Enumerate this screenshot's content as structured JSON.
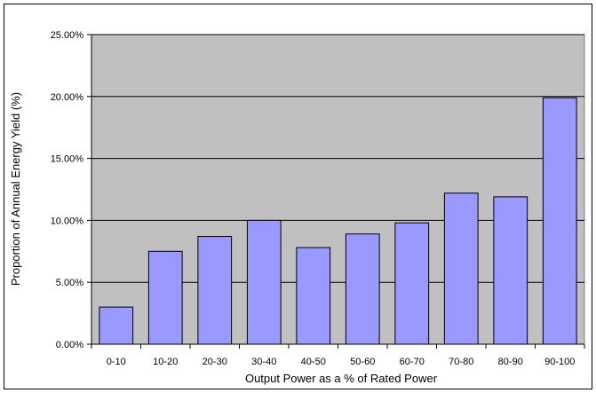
{
  "chart_data": {
    "type": "bar",
    "title": "",
    "xlabel": "Output Power as a % of Rated Power",
    "ylabel": "Proportion of Annual Energy Yield (%)",
    "categories": [
      "0-10",
      "10-20",
      "20-30",
      "30-40",
      "40-50",
      "50-60",
      "60-70",
      "70-80",
      "80-90",
      "90-100"
    ],
    "values": [
      3.0,
      7.5,
      8.7,
      10.0,
      7.8,
      8.9,
      9.8,
      12.2,
      11.9,
      19.9
    ],
    "value_unit": "%",
    "ylim": [
      0,
      25
    ],
    "yticks": [
      "0.00%",
      "5.00%",
      "10.00%",
      "15.00%",
      "20.00%",
      "25.00%"
    ],
    "grid": true,
    "legend": "none",
    "colors": {
      "plot_background": "#c0c0c0",
      "bar_fill": "#9999ff",
      "bar_stroke": "#000000",
      "gridline": "#000000"
    }
  }
}
